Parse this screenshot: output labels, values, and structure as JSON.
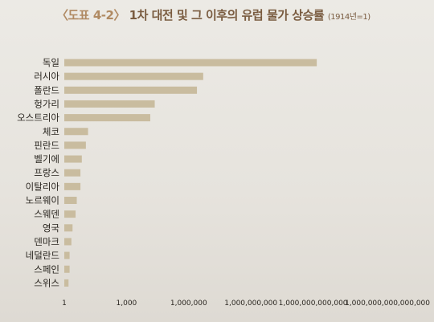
{
  "title": {
    "tag": "〈도표 4-2〉",
    "main": "1차 대전 및 그 이후의 유럽 물가 상승률",
    "note": "(1914년=1)"
  },
  "chart_data": {
    "type": "bar",
    "orientation": "horizontal",
    "scale": "log",
    "categories": [
      "독일",
      "러시아",
      "폴란드",
      "헝가리",
      "오스트리아",
      "체코",
      "핀란드",
      "벨기에",
      "프랑스",
      "이탈리아",
      "노르웨이",
      "스웨덴",
      "영국",
      "덴마크",
      "네덜란드",
      "스페인",
      "스위스"
    ],
    "values": [
      1500000000000.0,
      5000000.0,
      2500000.0,
      23000,
      14000,
      14,
      11,
      7,
      6,
      6,
      4,
      3.5,
      2.5,
      2.2,
      1.8,
      1.8,
      1.6
    ],
    "xlim": [
      1,
      1000000000000000.0
    ],
    "x_ticks": [
      1,
      1000,
      1000000,
      1000000000,
      1000000000000,
      1000000000000000
    ],
    "x_tick_labels": [
      "1",
      "1,000",
      "1,000,000",
      "1,000,000,000",
      "1,000,000,000,000",
      "1,000,000,000,000,000"
    ],
    "bar_color": "#c9bc9f"
  }
}
